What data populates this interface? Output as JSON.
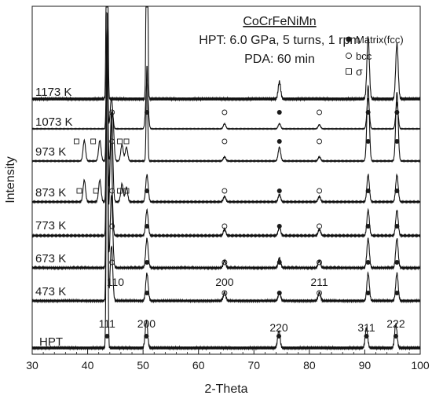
{
  "chart_data": {
    "type": "line",
    "title": "CoCrFeNiMn",
    "subtitle_lines": [
      "HPT: 6.0 GPa, 5 turns, 1 rpm",
      "PDA: 60 min"
    ],
    "xlabel": "2-Theta",
    "ylabel": "Intensity",
    "xlim": [
      30,
      100
    ],
    "xticks": [
      "30",
      "40",
      "50",
      "60",
      "70",
      "80",
      "90",
      "100"
    ],
    "legend": {
      "placement": "top-right",
      "entries": [
        {
          "marker": "filled-circle",
          "label": "Matrix(fcc)"
        },
        {
          "marker": "open-circle",
          "label": "bcc"
        },
        {
          "marker": "open-square",
          "label": "σ"
        }
      ]
    },
    "series": [
      {
        "name": "1173 K",
        "peaks": [
          {
            "x": 43.5,
            "h": 1.0
          },
          {
            "x": 50.7,
            "h": 0.9
          },
          {
            "x": 74.6,
            "h": 0.05
          },
          {
            "x": 90.6,
            "h": 0.18
          },
          {
            "x": 95.8,
            "h": 0.16
          }
        ],
        "markers": []
      },
      {
        "name": "1073 K",
        "peaks": [
          {
            "x": 43.5,
            "h": 1.0
          },
          {
            "x": 44.3,
            "h": 0.3
          },
          {
            "x": 50.7,
            "h": 0.45
          },
          {
            "x": 64.7,
            "h": 0.05
          },
          {
            "x": 74.6,
            "h": 0.05
          },
          {
            "x": 81.8,
            "h": 0.04
          },
          {
            "x": 90.6,
            "h": 0.3
          },
          {
            "x": 95.8,
            "h": 0.25
          }
        ],
        "markers": [
          {
            "type": "fcc",
            "x": 50.7
          },
          {
            "type": "bcc",
            "x": 44.4
          },
          {
            "type": "bcc",
            "x": 64.7
          },
          {
            "type": "fcc",
            "x": 74.6
          },
          {
            "type": "bcc",
            "x": 81.8
          },
          {
            "type": "fcc",
            "x": 90.6
          },
          {
            "type": "fcc",
            "x": 95.8
          }
        ]
      },
      {
        "name": "973 K",
        "peaks": [
          {
            "x": 39.4,
            "h": 0.15
          },
          {
            "x": 42.2,
            "h": 0.15
          },
          {
            "x": 43.5,
            "h": 1.0
          },
          {
            "x": 44.5,
            "h": 0.35
          },
          {
            "x": 46.2,
            "h": 0.12
          },
          {
            "x": 47.0,
            "h": 0.1
          },
          {
            "x": 50.7,
            "h": 0.7
          },
          {
            "x": 64.7,
            "h": 0.03
          },
          {
            "x": 74.6,
            "h": 0.1
          },
          {
            "x": 81.8,
            "h": 0.03
          },
          {
            "x": 90.6,
            "h": 0.55
          },
          {
            "x": 95.8,
            "h": 0.5
          }
        ],
        "markers": [
          {
            "type": "sigma",
            "x": 38.0
          },
          {
            "type": "sigma",
            "x": 41.0
          },
          {
            "type": "bcc",
            "x": 44.4
          },
          {
            "type": "sigma",
            "x": 45.8
          },
          {
            "type": "sigma",
            "x": 47.0
          },
          {
            "type": "bcc",
            "x": 64.7
          },
          {
            "type": "fcc",
            "x": 74.6
          },
          {
            "type": "bcc",
            "x": 81.8
          },
          {
            "type": "fcc",
            "x": 90.6
          },
          {
            "type": "fcc",
            "x": 95.8
          }
        ]
      },
      {
        "name": "873 K",
        "peaks": [
          {
            "x": 39.4,
            "h": 0.12
          },
          {
            "x": 42.2,
            "h": 0.12
          },
          {
            "x": 43.5,
            "h": 1.0
          },
          {
            "x": 44.3,
            "h": 0.5
          },
          {
            "x": 46.2,
            "h": 0.1
          },
          {
            "x": 47.0,
            "h": 0.08
          },
          {
            "x": 50.7,
            "h": 0.15
          },
          {
            "x": 64.7,
            "h": 0.03
          },
          {
            "x": 74.6,
            "h": 0.04
          },
          {
            "x": 81.8,
            "h": 0.03
          },
          {
            "x": 90.6,
            "h": 0.15
          },
          {
            "x": 95.8,
            "h": 0.15
          }
        ],
        "markers": [
          {
            "type": "sigma",
            "x": 38.5
          },
          {
            "type": "sigma",
            "x": 41.5
          },
          {
            "type": "bcc",
            "x": 44.4
          },
          {
            "type": "sigma",
            "x": 45.8
          },
          {
            "type": "sigma",
            "x": 47.0
          },
          {
            "type": "fcc",
            "x": 50.7
          },
          {
            "type": "bcc",
            "x": 64.7
          },
          {
            "type": "fcc",
            "x": 74.6
          },
          {
            "type": "bcc",
            "x": 81.8
          },
          {
            "type": "fcc",
            "x": 90.6
          },
          {
            "type": "fcc",
            "x": 95.8
          }
        ]
      },
      {
        "name": "773 K",
        "peaks": [
          {
            "x": 43.5,
            "h": 1.0
          },
          {
            "x": 44.2,
            "h": 0.45
          },
          {
            "x": 50.7,
            "h": 0.12
          },
          {
            "x": 64.7,
            "h": 0.03
          },
          {
            "x": 74.6,
            "h": 0.04
          },
          {
            "x": 81.8,
            "h": 0.03
          },
          {
            "x": 90.6,
            "h": 0.12
          },
          {
            "x": 95.8,
            "h": 0.12
          }
        ],
        "markers": [
          {
            "type": "bcc",
            "x": 44.4
          },
          {
            "type": "fcc",
            "x": 50.7
          },
          {
            "type": "bcc",
            "x": 64.7
          },
          {
            "type": "fcc",
            "x": 74.6
          },
          {
            "type": "bcc",
            "x": 81.8
          },
          {
            "type": "fcc",
            "x": 90.6
          },
          {
            "type": "fcc",
            "x": 95.8
          }
        ]
      },
      {
        "name": "673 K",
        "peaks": [
          {
            "x": 43.5,
            "h": 1.0
          },
          {
            "x": 44.3,
            "h": 0.3
          },
          {
            "x": 50.7,
            "h": 0.12
          },
          {
            "x": 64.7,
            "h": 0.03
          },
          {
            "x": 74.6,
            "h": 0.04
          },
          {
            "x": 81.8,
            "h": 0.03
          },
          {
            "x": 90.6,
            "h": 0.12
          },
          {
            "x": 95.8,
            "h": 0.12
          }
        ],
        "markers": [
          {
            "type": "bcc",
            "x": 44.4
          },
          {
            "type": "fcc",
            "x": 50.7
          },
          {
            "type": "bcc",
            "x": 64.7
          },
          {
            "type": "fcc",
            "x": 74.6
          },
          {
            "type": "bcc",
            "x": 81.8
          },
          {
            "type": "fcc",
            "x": 90.6
          },
          {
            "type": "fcc",
            "x": 95.8
          }
        ]
      },
      {
        "name": "473 K",
        "peaks": [
          {
            "x": 43.5,
            "h": 1.0
          },
          {
            "x": 44.3,
            "h": 0.2
          },
          {
            "x": 50.7,
            "h": 0.1
          },
          {
            "x": 64.7,
            "h": 0.03
          },
          {
            "x": 74.6,
            "h": 0.03
          },
          {
            "x": 81.8,
            "h": 0.03
          },
          {
            "x": 90.6,
            "h": 0.1
          },
          {
            "x": 95.8,
            "h": 0.1
          }
        ],
        "markers": [
          {
            "type": "fcc",
            "x": 50.7
          },
          {
            "type": "bcc",
            "x": 64.7
          },
          {
            "type": "fcc",
            "x": 74.6
          },
          {
            "type": "bcc",
            "x": 81.8
          },
          {
            "type": "fcc",
            "x": 90.6
          },
          {
            "type": "fcc",
            "x": 95.8
          }
        ]
      },
      {
        "name": "HPT",
        "peaks": [
          {
            "x": 43.5,
            "h": 1.0
          },
          {
            "x": 50.6,
            "h": 0.08
          },
          {
            "x": 74.5,
            "h": 0.05
          },
          {
            "x": 90.3,
            "h": 0.06
          },
          {
            "x": 95.6,
            "h": 0.07
          }
        ],
        "markers": [
          {
            "type": "fcc",
            "x": 43.5
          },
          {
            "type": "fcc",
            "x": 50.6
          },
          {
            "type": "fcc",
            "x": 74.5
          },
          {
            "type": "fcc",
            "x": 90.3
          },
          {
            "type": "fcc",
            "x": 95.6
          }
        ]
      }
    ],
    "annotations": [
      {
        "text": "110",
        "x": 45.0
      },
      {
        "text": "200",
        "x": 64.7
      },
      {
        "text": "211",
        "x": 81.8
      },
      {
        "text": "111",
        "x": 43.5
      },
      {
        "text": "200",
        "x": 50.6
      },
      {
        "text": "220",
        "x": 74.5
      },
      {
        "text": "311",
        "x": 90.3
      },
      {
        "text": "222",
        "x": 95.6
      }
    ]
  }
}
